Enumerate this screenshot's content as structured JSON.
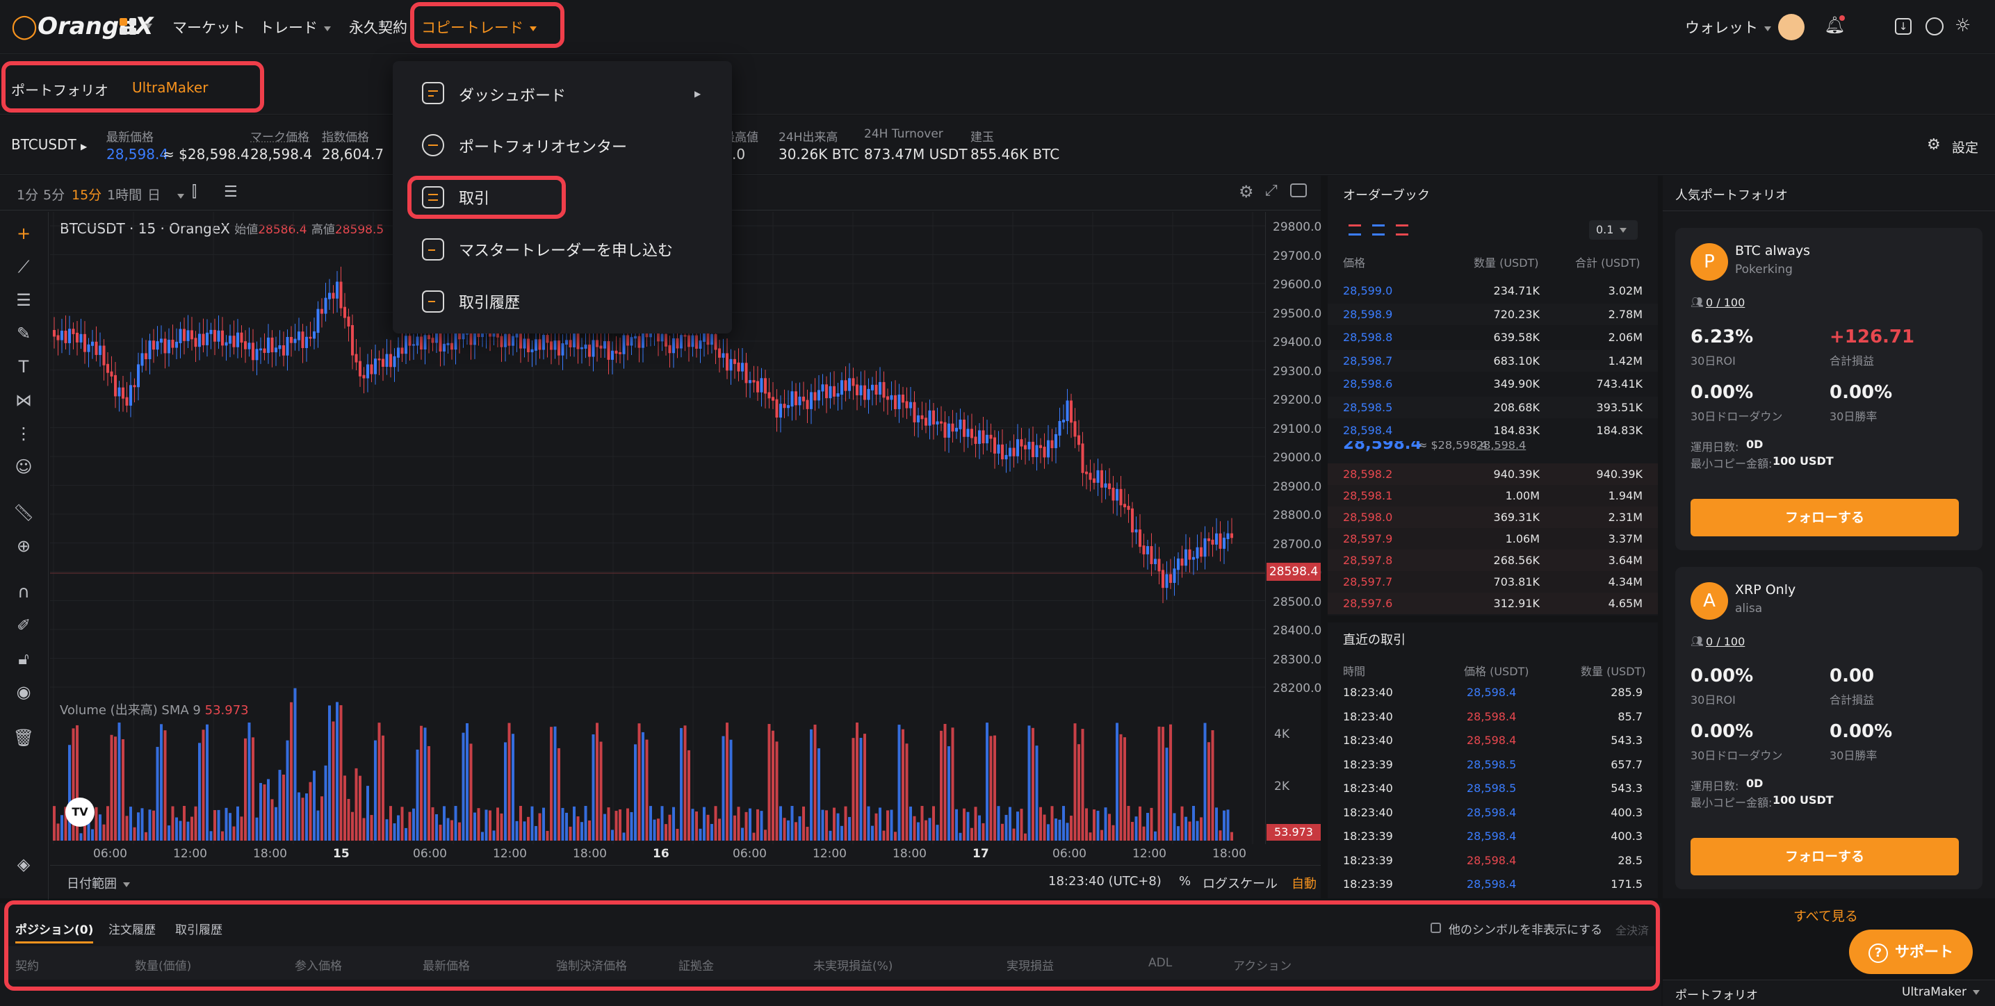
{
  "nav": {
    "logo": "OrangeX",
    "market": "マーケット",
    "trade": "トレード",
    "perp": "永久契約",
    "copy": "コピートレード",
    "wallet": "ウォレット"
  },
  "subnav": {
    "portfolio": "ポートフォリオ",
    "trader": "UltraMaker"
  },
  "dropdown": {
    "items": [
      "ダッシュボード",
      "ポートフォリオセンター",
      "取引",
      "マスタートレーダーを申し込む",
      "取引履歴"
    ]
  },
  "ticker": {
    "symbol": "BTCUSDT",
    "last_k": "最新価格",
    "last_v": "28,598.4",
    "last_conv": "≈ $28,598.4",
    "mark_k": "マーク価格",
    "mark_v": "28,598.4",
    "index_k": "指数価格",
    "index_v": "28,604.7",
    "high_k": "最高値",
    "high_v": ".0",
    "vol_k": "24H出来高",
    "vol_v": "30.26K BTC",
    "to_k": "24H Turnover",
    "to_v": "873.47M USDT",
    "oi_k": "建玉",
    "oi_v": "855.46K BTC",
    "settings": "設定"
  },
  "timeframes": [
    "1分",
    "5分",
    "15分",
    "1時間",
    "日"
  ],
  "chart": {
    "legend": "BTCUSDT · 15 · OrangeX",
    "open_k": "始値",
    "open_v": "28586.4",
    "high_k": "高値",
    "high_v": "28598.5",
    "vol_label": "Volume (出来高) SMA 9",
    "vol_val": "53.973",
    "last_tag": "28598.4",
    "vol_tag": "53.973",
    "price_ticks": [
      "29800.0",
      "29700.0",
      "29600.0",
      "29500.0",
      "29400.0",
      "29300.0",
      "29200.0",
      "29100.0",
      "29000.0",
      "28900.0",
      "28800.0",
      "28700.0",
      "28600.0",
      "28500.0",
      "28400.0",
      "28300.0",
      "28200.0"
    ],
    "vol_ticks": [
      "4K",
      "2K"
    ],
    "time_ticks": [
      "06:00",
      "12:00",
      "18:00",
      "15",
      "06:00",
      "12:00",
      "18:00",
      "16",
      "06:00",
      "12:00",
      "18:00",
      "17",
      "06:00",
      "12:00",
      "18:00"
    ],
    "date_range": "日付範囲",
    "clock": "18:23:40 (UTC+8)",
    "pct": "%",
    "log": "ログスケール",
    "auto": "自動",
    "tv": "TV"
  },
  "orderbook": {
    "title": "オーダーブック",
    "step": "0.1",
    "col_price": "価格",
    "col_qty": "数量 (USDT)",
    "col_total": "合計 (USDT)",
    "asks": [
      [
        "28,599.0",
        "234.71K",
        "3.02M"
      ],
      [
        "28,598.9",
        "720.23K",
        "2.78M"
      ],
      [
        "28,598.8",
        "639.58K",
        "2.06M"
      ],
      [
        "28,598.7",
        "683.10K",
        "1.42M"
      ],
      [
        "28,598.6",
        "349.90K",
        "743.41K"
      ],
      [
        "28,598.5",
        "208.68K",
        "393.51K"
      ],
      [
        "28,598.4",
        "184.83K",
        "184.83K"
      ]
    ],
    "mid": "28,598.4",
    "mid_conv": "≈ $28,598.4",
    "mid_mark": "28,598.4",
    "bids": [
      [
        "28,598.2",
        "940.39K",
        "940.39K"
      ],
      [
        "28,598.1",
        "1.00M",
        "1.94M"
      ],
      [
        "28,598.0",
        "369.31K",
        "2.31M"
      ],
      [
        "28,597.9",
        "1.06M",
        "3.37M"
      ],
      [
        "28,597.8",
        "268.56K",
        "3.64M"
      ],
      [
        "28,597.7",
        "703.81K",
        "4.34M"
      ],
      [
        "28,597.6",
        "312.91K",
        "4.65M"
      ]
    ]
  },
  "trades": {
    "title": "直近の取引",
    "col_time": "時間",
    "col_price": "価格 (USDT)",
    "col_qty": "数量 (USDT)",
    "rows": [
      [
        "18:23:40",
        "28,598.4",
        "285.9",
        "b"
      ],
      [
        "18:23:40",
        "28,598.4",
        "85.7",
        "r"
      ],
      [
        "18:23:40",
        "28,598.4",
        "543.3",
        "r"
      ],
      [
        "18:23:39",
        "28,598.5",
        "657.7",
        "b"
      ],
      [
        "18:23:40",
        "28,598.5",
        "543.3",
        "b"
      ],
      [
        "18:23:40",
        "28,598.4",
        "400.3",
        "b"
      ],
      [
        "18:23:39",
        "28,598.4",
        "400.3",
        "b"
      ],
      [
        "18:23:39",
        "28,598.4",
        "28.5",
        "r"
      ],
      [
        "18:23:39",
        "28,598.4",
        "171.5",
        "b"
      ]
    ]
  },
  "hot": {
    "title": "人気ポートフォリオ",
    "see_all": "すべて見る",
    "cards": [
      {
        "initial": "P",
        "name": "BTC always",
        "user": "Pokerking",
        "slots": "0 / 100",
        "roi": "6.23%",
        "roi_k": "30日ROI",
        "pnl": "+126.71",
        "pnl_k": "合計損益",
        "dd": "0.00%",
        "dd_k": "30日ドローダウン",
        "win": "0.00%",
        "win_k": "30日勝率",
        "days_k": "運用日数:",
        "days": "0D",
        "min_k": "最小コピー金額:",
        "min": "100 USDT",
        "follow": "フォローする"
      },
      {
        "initial": "A",
        "name": "XRP Only",
        "user": "alisa",
        "slots": "0 / 100",
        "roi": "0.00%",
        "roi_k": "30日ROI",
        "pnl": "0.00",
        "pnl_k": "合計損益",
        "dd": "0.00%",
        "dd_k": "30日ドローダウン",
        "win": "0.00%",
        "win_k": "30日勝率",
        "days_k": "運用日数:",
        "days": "0D",
        "min_k": "最小コピー金額:",
        "min": "100 USDT",
        "follow": "フォローする"
      }
    ]
  },
  "bottom": {
    "tabs": [
      "ポジション(0)",
      "注文履歴",
      "取引履歴"
    ],
    "hide": "他のシンボルを非表示にする",
    "close_all": "全決済",
    "cols": [
      "契約",
      "数量(価値)",
      "参入価格",
      "最新価格",
      "強制決済価格",
      "証拠金",
      "未実現損益(%)",
      "実現損益",
      "ADL",
      "アクション"
    ],
    "footer_k": "ポートフォリオ",
    "footer_v": "UltraMaker"
  },
  "support": "サポート",
  "colors": {
    "accent": "#f7931e",
    "up": "#3b7dff",
    "down": "#e8484f",
    "highlight": "#ef3e4a"
  }
}
